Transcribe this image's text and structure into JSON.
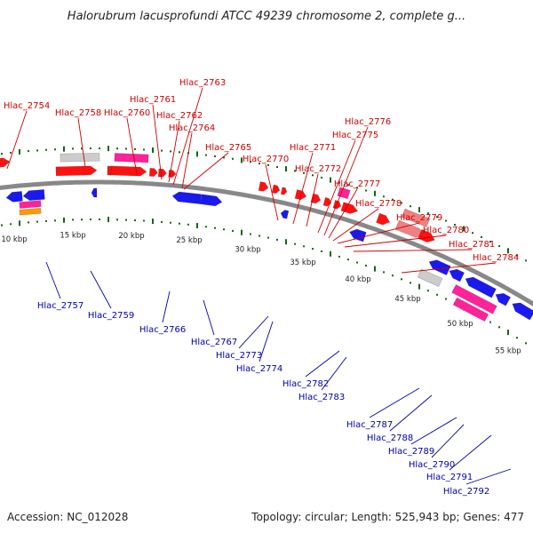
{
  "title": "Halorubrum lacusprofundi ATCC 49239 chromosome 2, complete g...",
  "footer": {
    "accession": "Accession: NC_012028",
    "summary": "Topology: circular; Length: 525,943 bp; Genes: 477"
  },
  "colors": {
    "top_label": "#cc0000",
    "bottom_label": "#0000aa",
    "backbone": "#888888",
    "gene_red": "#ff1111",
    "gene_blue": "#1a1aee",
    "gene_pink": "#ff2299",
    "gene_gray": "#cccccc",
    "gene_light_red": "#f08080",
    "gene_orange": "#ff9900",
    "gc_dots": "#116611"
  },
  "scale_ticks": [
    "10 kbp",
    "15 kbp",
    "20 kbp",
    "25 kbp",
    "30 kbp",
    "35 kbp",
    "40 kbp",
    "45 kbp",
    "50 kbp",
    "55 kbp"
  ],
  "top_labels": [
    "Hlac_2754",
    "Hlac_2758",
    "Hlac_2760",
    "Hlac_2761",
    "Hlac_2762",
    "Hlac_2763",
    "Hlac_2764",
    "Hlac_2765",
    "Hlac_2770",
    "Hlac_2771",
    "Hlac_2772",
    "Hlac_2775",
    "Hlac_2776",
    "Hlac_2777",
    "Hlac_2778",
    "Hlac_2779",
    "Hlac_2780",
    "Hlac_2781",
    "Hlac_2784"
  ],
  "bottom_labels": [
    "Hlac_2757",
    "Hlac_2759",
    "Hlac_2766",
    "Hlac_2767",
    "Hlac_2773",
    "Hlac_2774",
    "Hlac_2782",
    "Hlac_2783",
    "Hlac_2787",
    "Hlac_2788",
    "Hlac_2789",
    "Hlac_2790",
    "Hlac_2791",
    "Hlac_2792"
  ]
}
